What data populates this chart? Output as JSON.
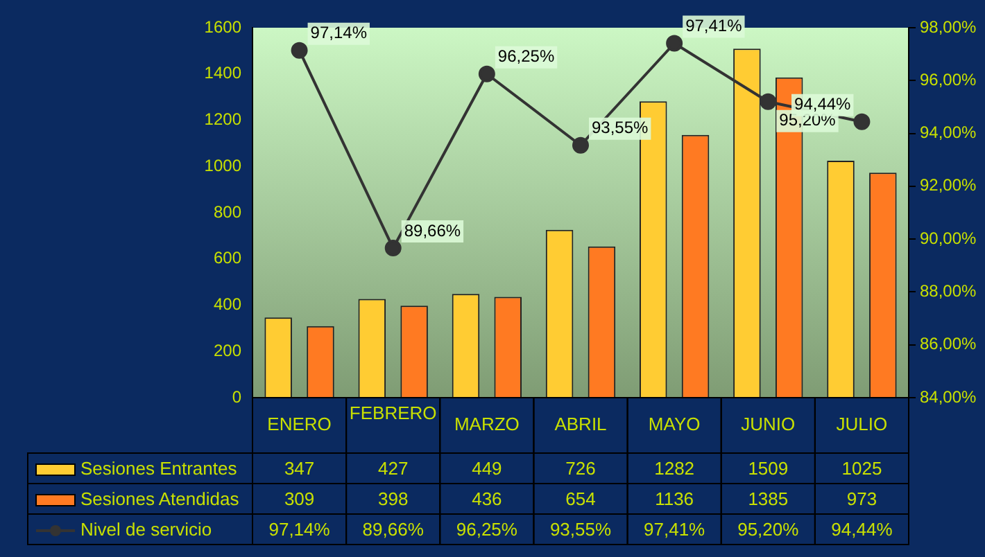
{
  "chart_data": {
    "type": "bar",
    "categories": [
      "ENERO",
      "FEBRERO",
      "MARZO",
      "ABRIL",
      "MAYO",
      "JUNIO",
      "JULIO"
    ],
    "series": [
      {
        "name": "Sesiones Entrantes",
        "color": "#ffcc33",
        "values": [
          347,
          427,
          449,
          726,
          1282,
          1509,
          1025
        ]
      },
      {
        "name": "Sesiones Atendidas",
        "color": "#ff7a22",
        "values": [
          309,
          398,
          436,
          654,
          1136,
          1385,
          973
        ]
      },
      {
        "name": "Nivel de servicio",
        "type": "line",
        "axis": "y2",
        "color": "#333333",
        "marker": "circle",
        "values": [
          97.14,
          89.66,
          96.25,
          93.55,
          97.41,
          95.2,
          94.44
        ],
        "value_labels": [
          "97,14%",
          "89,66%",
          "96,25%",
          "93,55%",
          "97,41%",
          "95,20%",
          "94,44%"
        ]
      }
    ],
    "ylim": [
      0,
      1600
    ],
    "yticks": [
      0,
      200,
      400,
      600,
      800,
      1000,
      1200,
      1400,
      1600
    ],
    "y2lim": [
      84,
      98
    ],
    "y2ticks": [
      {
        "value": 84,
        "label": "84,00%"
      },
      {
        "value": 86,
        "label": "86,00%"
      },
      {
        "value": 88,
        "label": "88,00%"
      },
      {
        "value": 90,
        "label": "90,00%"
      },
      {
        "value": 92,
        "label": "92,00%"
      },
      {
        "value": 94,
        "label": "94,00%"
      },
      {
        "value": 96,
        "label": "96,00%"
      },
      {
        "value": 98,
        "label": "98,00%"
      }
    ],
    "data_labels": true,
    "legend": "bottom",
    "grid": false
  }
}
